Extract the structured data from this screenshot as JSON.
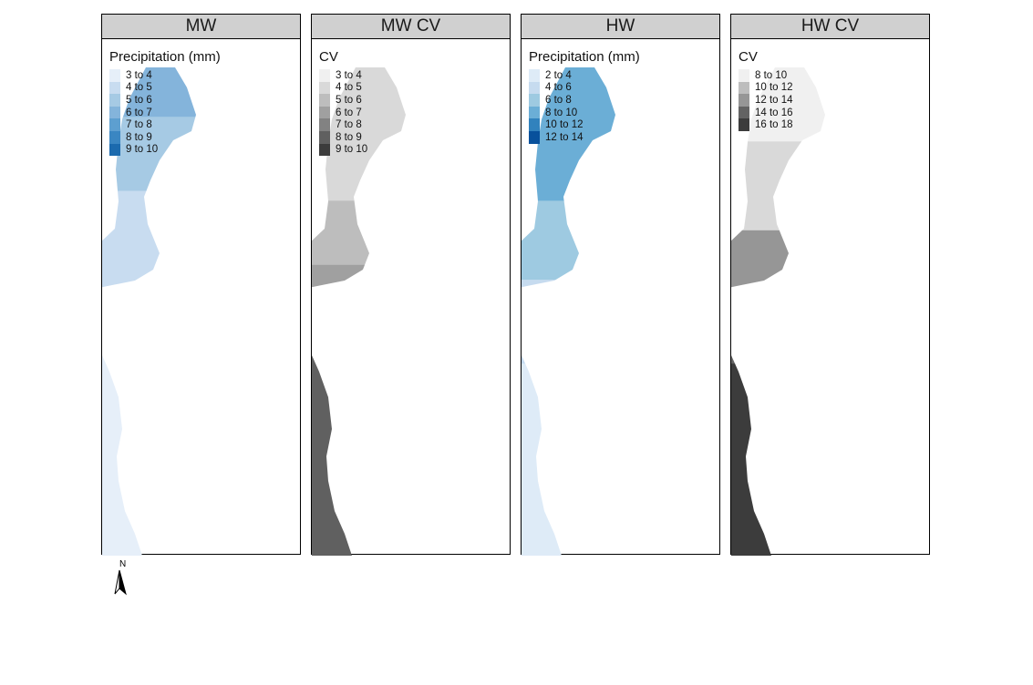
{
  "panels": [
    {
      "title": "MW",
      "legend_title": "Precipitation (mm)",
      "classes": [
        {
          "label": "3 to 4",
          "color": "#e6eff9"
        },
        {
          "label": "4 to 5",
          "color": "#c8dcf0"
        },
        {
          "label": "5 to 6",
          "color": "#a6cae4"
        },
        {
          "label": "6 to 7",
          "color": "#84b4db"
        },
        {
          "label": "7 to 8",
          "color": "#5d9fd0"
        },
        {
          "label": "8 to 9",
          "color": "#3a86c2"
        },
        {
          "label": "9 to 10",
          "color": "#1b6aae"
        }
      ],
      "zones": [
        {
          "from": 0.0,
          "to": 0.1,
          "color": "#84b4db"
        },
        {
          "from": 0.1,
          "to": 0.25,
          "color": "#a6cae4"
        },
        {
          "from": 0.25,
          "to": 0.45,
          "color": "#c8dcf0"
        },
        {
          "from": 0.45,
          "to": 1.0,
          "color": "#e6eff9"
        }
      ],
      "spots": [
        {
          "v": 0.15,
          "r": 11,
          "color": "#3a86c2"
        },
        {
          "v": 0.15,
          "r": 5,
          "color": "#1b6aae"
        },
        {
          "v": 0.4,
          "r": 6,
          "color": "#5d9fd0"
        }
      ]
    },
    {
      "title": "MW CV",
      "legend_title": "CV",
      "classes": [
        {
          "label": "3 to 4",
          "color": "#f0f0f0"
        },
        {
          "label": "4 to 5",
          "color": "#d9d9d9"
        },
        {
          "label": "5 to 6",
          "color": "#bdbdbd"
        },
        {
          "label": "6 to 7",
          "color": "#a0a0a0"
        },
        {
          "label": "7 to 8",
          "color": "#828282"
        },
        {
          "label": "8 to 9",
          "color": "#606060"
        },
        {
          "label": "9 to 10",
          "color": "#3c3c3c"
        }
      ],
      "zones": [
        {
          "from": 0.0,
          "to": 0.27,
          "color": "#d9d9d9"
        },
        {
          "from": 0.27,
          "to": 0.4,
          "color": "#bdbdbd"
        },
        {
          "from": 0.4,
          "to": 0.49,
          "color": "#a0a0a0"
        },
        {
          "from": 0.49,
          "to": 0.58,
          "color": "#828282"
        },
        {
          "from": 0.58,
          "to": 1.0,
          "color": "#606060"
        }
      ],
      "spots": []
    },
    {
      "title": "HW",
      "legend_title": "Precipitation (mm)",
      "classes": [
        {
          "label": "2 to 4",
          "color": "#deebf7"
        },
        {
          "label": "4 to 6",
          "color": "#c6dbef"
        },
        {
          "label": "6 to 8",
          "color": "#9ecae1"
        },
        {
          "label": "8 to 10",
          "color": "#6baed6"
        },
        {
          "label": "10 to 12",
          "color": "#3182bd"
        },
        {
          "label": "12 to 14",
          "color": "#08519c"
        }
      ],
      "zones": [
        {
          "from": 0.0,
          "to": 0.27,
          "color": "#6baed6"
        },
        {
          "from": 0.27,
          "to": 0.43,
          "color": "#9ecae1"
        },
        {
          "from": 0.43,
          "to": 0.6,
          "color": "#c6dbef"
        },
        {
          "from": 0.6,
          "to": 1.0,
          "color": "#deebf7"
        }
      ],
      "spots": [
        {
          "v": 0.15,
          "r": 12,
          "color": "#3182bd"
        },
        {
          "v": 0.15,
          "r": 5,
          "color": "#08519c"
        },
        {
          "v": 0.4,
          "r": 6,
          "color": "#6baed6"
        }
      ]
    },
    {
      "title": "HW CV",
      "legend_title": "CV",
      "classes": [
        {
          "label": "8 to 10",
          "color": "#f0f0f0"
        },
        {
          "label": "10 to 12",
          "color": "#bdbdbd"
        },
        {
          "label": "12 to 14",
          "color": "#969696"
        },
        {
          "label": "14 to 16",
          "color": "#636363"
        },
        {
          "label": "16 to 18",
          "color": "#3c3c3c"
        }
      ],
      "zones": [
        {
          "from": 0.0,
          "to": 0.15,
          "color": "#f0f0f0"
        },
        {
          "from": 0.15,
          "to": 0.33,
          "color": "#d9d9d9"
        },
        {
          "from": 0.33,
          "to": 0.47,
          "color": "#969696"
        },
        {
          "from": 0.47,
          "to": 0.6,
          "color": "#636363"
        },
        {
          "from": 0.6,
          "to": 1.0,
          "color": "#3c3c3c"
        }
      ],
      "spots": []
    }
  ],
  "north_arrow": {
    "label": "N"
  }
}
